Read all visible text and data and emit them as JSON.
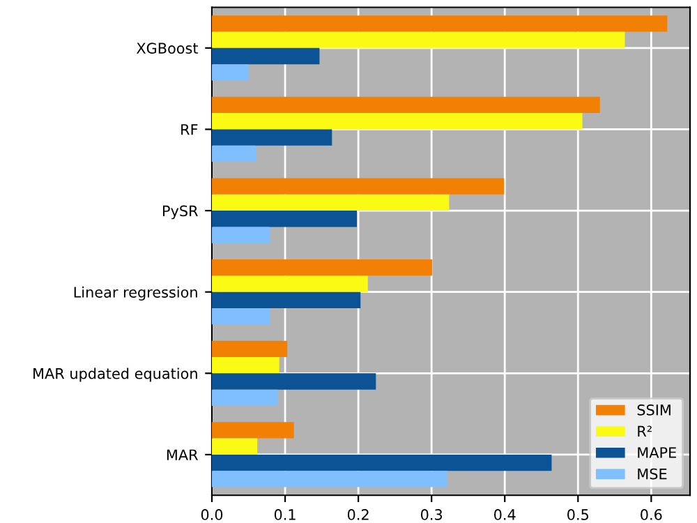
{
  "chart_data": {
    "type": "bar",
    "orientation": "horizontal",
    "categories": [
      "XGBoost",
      "RF",
      "PySR",
      "Linear regression",
      "MAR updated equation",
      "MAR"
    ],
    "series": [
      {
        "name": "SSIM",
        "color": "#f28005",
        "values": [
          0.622,
          0.53,
          0.399,
          0.301,
          0.103,
          0.112
        ]
      },
      {
        "name": "R²",
        "color": "#fafa14",
        "values": [
          0.564,
          0.506,
          0.324,
          0.213,
          0.092,
          0.062
        ]
      },
      {
        "name": "MAPE",
        "color": "#0b5394",
        "values": [
          0.147,
          0.164,
          0.198,
          0.203,
          0.224,
          0.464
        ]
      },
      {
        "name": "MSE",
        "color": "#80bfff",
        "values": [
          0.05,
          0.06,
          0.079,
          0.079,
          0.09,
          0.321
        ]
      }
    ],
    "xlim": [
      0,
      0.653
    ],
    "xticks": [
      {
        "value": 0,
        "label": "0.0"
      },
      0.1,
      0.2,
      0.3,
      0.4,
      0.5,
      0.6
    ],
    "grid": true,
    "legend": "bottom right"
  }
}
